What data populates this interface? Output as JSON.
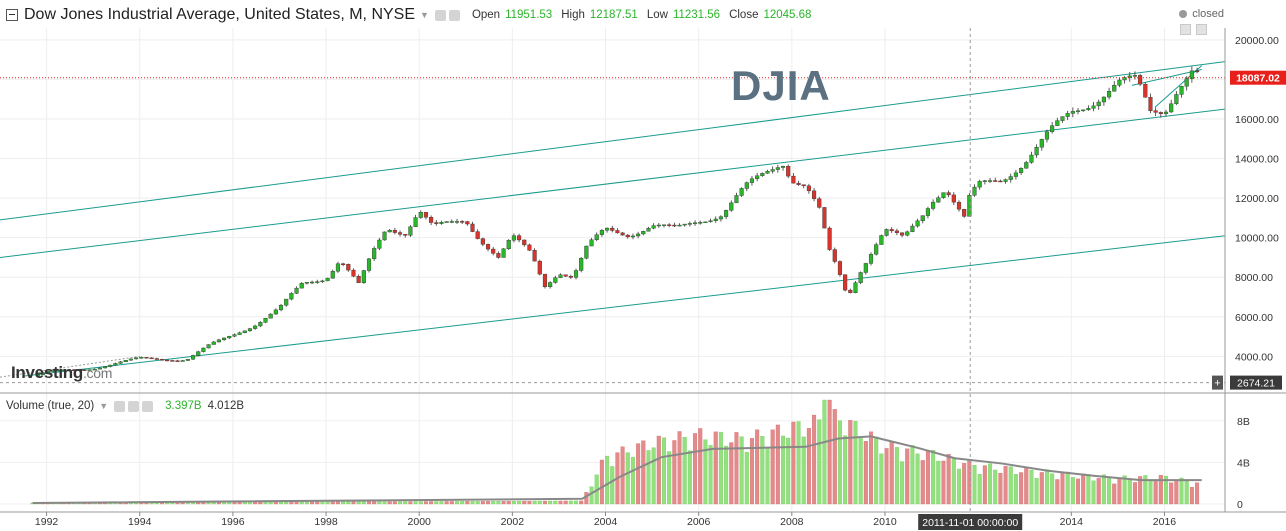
{
  "header": {
    "title": "Dow Jones Industrial Average, United States, M, NYSE",
    "open_label": "Open",
    "open_value": "11951.53",
    "high_label": "High",
    "high_value": "12187.51",
    "low_label": "Low",
    "low_value": "11231.56",
    "close_label": "Close",
    "close_value": "12045.68",
    "status": "closed"
  },
  "watermark": "DJIA",
  "logo": {
    "main": "Investing",
    "suffix": ".com"
  },
  "volume_panel": {
    "title": "Volume (true, 20)",
    "value_1": "3.397B",
    "value_2": "4.012B"
  },
  "crosshair": {
    "price_label": "2674.21",
    "time_label": "2011-11-01 00:00:00"
  },
  "last_price_label": "18087.02",
  "colors": {
    "up": "#2bb52b",
    "down": "#d9342b",
    "channel": "#1a9c8e",
    "last_price": "#e8201c",
    "vol_up": "#94e07f",
    "vol_down": "#e48a8a",
    "vol_ma": "#888888"
  },
  "chart_data": [
    {
      "type": "candlestick",
      "title": "Dow Jones Industrial Average, United States, M, NYSE",
      "x_tick_labels": [
        "1992",
        "1994",
        "1996",
        "1998",
        "2000",
        "2002",
        "2004",
        "2006",
        "2008",
        "2010",
        "2014",
        "2016"
      ],
      "y_tick_labels": [
        "20000.00",
        "18000.00",
        "16000.00",
        "14000.00",
        "12000.00",
        "10000.00",
        "8000.00",
        "6000.00",
        "4000.00"
      ],
      "ylim": [
        2300,
        20600
      ],
      "grid": true,
      "close_series": [
        {
          "year": 1991.7,
          "close": 3000
        },
        {
          "year": 1992.0,
          "close": 3200
        },
        {
          "year": 1993.0,
          "close": 3400
        },
        {
          "year": 1994.0,
          "close": 3900
        },
        {
          "year": 1995.0,
          "close": 3830
        },
        {
          "year": 1995.5,
          "close": 4550
        },
        {
          "year": 1996.0,
          "close": 5100
        },
        {
          "year": 1996.5,
          "close": 5650
        },
        {
          "year": 1997.0,
          "close": 6400
        },
        {
          "year": 1997.5,
          "close": 7700
        },
        {
          "year": 1998.0,
          "close": 8000
        },
        {
          "year": 1998.3,
          "close": 8900
        },
        {
          "year": 1998.7,
          "close": 7600
        },
        {
          "year": 1999.0,
          "close": 9200
        },
        {
          "year": 1999.3,
          "close": 10500
        },
        {
          "year": 1999.7,
          "close": 10300
        },
        {
          "year": 2000.0,
          "close": 11400
        },
        {
          "year": 2000.3,
          "close": 10500
        },
        {
          "year": 2000.7,
          "close": 10700
        },
        {
          "year": 2001.0,
          "close": 10900
        },
        {
          "year": 2001.3,
          "close": 10000
        },
        {
          "year": 2001.7,
          "close": 9000
        },
        {
          "year": 2002.0,
          "close": 10000
        },
        {
          "year": 2002.4,
          "close": 9200
        },
        {
          "year": 2002.7,
          "close": 7600
        },
        {
          "year": 2003.0,
          "close": 8300
        },
        {
          "year": 2003.3,
          "close": 8000
        },
        {
          "year": 2003.6,
          "close": 9500
        },
        {
          "year": 2004.0,
          "close": 10400
        },
        {
          "year": 2004.5,
          "close": 10200
        },
        {
          "year": 2005.0,
          "close": 10600
        },
        {
          "year": 2005.5,
          "close": 10400
        },
        {
          "year": 2006.0,
          "close": 10900
        },
        {
          "year": 2006.5,
          "close": 11200
        },
        {
          "year": 2007.0,
          "close": 12500
        },
        {
          "year": 2007.5,
          "close": 13400
        },
        {
          "year": 2007.8,
          "close": 13900
        },
        {
          "year": 2008.0,
          "close": 13000
        },
        {
          "year": 2008.3,
          "close": 12600
        },
        {
          "year": 2008.6,
          "close": 11300
        },
        {
          "year": 2008.8,
          "close": 9300
        },
        {
          "year": 2009.0,
          "close": 8300
        },
        {
          "year": 2009.2,
          "close": 7000
        },
        {
          "year": 2009.5,
          "close": 8500
        },
        {
          "year": 2009.8,
          "close": 9700
        },
        {
          "year": 2010.0,
          "close": 10400
        },
        {
          "year": 2010.4,
          "close": 9900
        },
        {
          "year": 2010.8,
          "close": 11100
        },
        {
          "year": 2011.0,
          "close": 11900
        },
        {
          "year": 2011.3,
          "close": 12600
        },
        {
          "year": 2011.7,
          "close": 11000
        },
        {
          "year": 2011.8,
          "close": 11950
        },
        {
          "year": 2012.0,
          "close": 12600
        },
        {
          "year": 2012.5,
          "close": 12900
        },
        {
          "year": 2013.0,
          "close": 13900
        },
        {
          "year": 2013.5,
          "close": 15200
        },
        {
          "year": 2014.0,
          "close": 16300
        },
        {
          "year": 2014.5,
          "close": 17000
        },
        {
          "year": 2015.0,
          "close": 17800
        },
        {
          "year": 2015.4,
          "close": 17900
        },
        {
          "year": 2015.7,
          "close": 16400
        },
        {
          "year": 2016.0,
          "close": 16500
        },
        {
          "year": 2016.3,
          "close": 17700
        },
        {
          "year": 2016.6,
          "close": 18400
        },
        {
          "year": 2016.8,
          "close": 18087
        }
      ],
      "annotations": [
        {
          "type": "horizontal_line",
          "value": 18087.02,
          "label": "18087.02"
        },
        {
          "type": "horizontal_line",
          "value": 2674.21,
          "label": "2674.21"
        },
        {
          "type": "vertical_line",
          "x": 2011.83,
          "label": "2011-11-01 00:00:00"
        }
      ]
    },
    {
      "type": "bar",
      "title": "Volume (true, 20)",
      "y_tick_labels": [
        "8B",
        "4B",
        "0"
      ],
      "ylim": [
        0,
        10
      ],
      "unit": "B",
      "series": [
        {
          "name": "volume",
          "values_by_year": [
            {
              "year": 1991.7,
              "value": 0.1
            },
            {
              "year": 2003.5,
              "value": 0.3
            },
            {
              "year": 2004.0,
              "value": 4.2
            },
            {
              "year": 2005.0,
              "value": 5.5
            },
            {
              "year": 2006.0,
              "value": 6.2
            },
            {
              "year": 2007.0,
              "value": 5.8
            },
            {
              "year": 2008.0,
              "value": 6.8
            },
            {
              "year": 2009.0,
              "value": 7.8
            },
            {
              "year": 2010.0,
              "value": 5.2
            },
            {
              "year": 2011.0,
              "value": 4.5
            },
            {
              "year": 2012.0,
              "value": 3.4
            },
            {
              "year": 2013.0,
              "value": 3.0
            },
            {
              "year": 2014.0,
              "value": 2.6
            },
            {
              "year": 2015.0,
              "value": 2.3
            },
            {
              "year": 2016.0,
              "value": 2.4
            },
            {
              "year": 2016.8,
              "value": 1.8
            }
          ]
        },
        {
          "name": "MA 20",
          "values_by_year": [
            {
              "year": 1991.7,
              "value": 0.1
            },
            {
              "year": 2003.5,
              "value": 0.5
            },
            {
              "year": 2004.3,
              "value": 2.6
            },
            {
              "year": 2005.2,
              "value": 4.5
            },
            {
              "year": 2006.3,
              "value": 5.3
            },
            {
              "year": 2007.3,
              "value": 5.4
            },
            {
              "year": 2008.3,
              "value": 5.5
            },
            {
              "year": 2009.0,
              "value": 6.3
            },
            {
              "year": 2009.7,
              "value": 6.5
            },
            {
              "year": 2010.7,
              "value": 5.4
            },
            {
              "year": 2011.5,
              "value": 4.4
            },
            {
              "year": 2012.5,
              "value": 3.9
            },
            {
              "year": 2013.5,
              "value": 3.2
            },
            {
              "year": 2014.5,
              "value": 2.7
            },
            {
              "year": 2015.5,
              "value": 2.3
            },
            {
              "year": 2016.8,
              "value": 2.3
            }
          ]
        }
      ]
    }
  ]
}
